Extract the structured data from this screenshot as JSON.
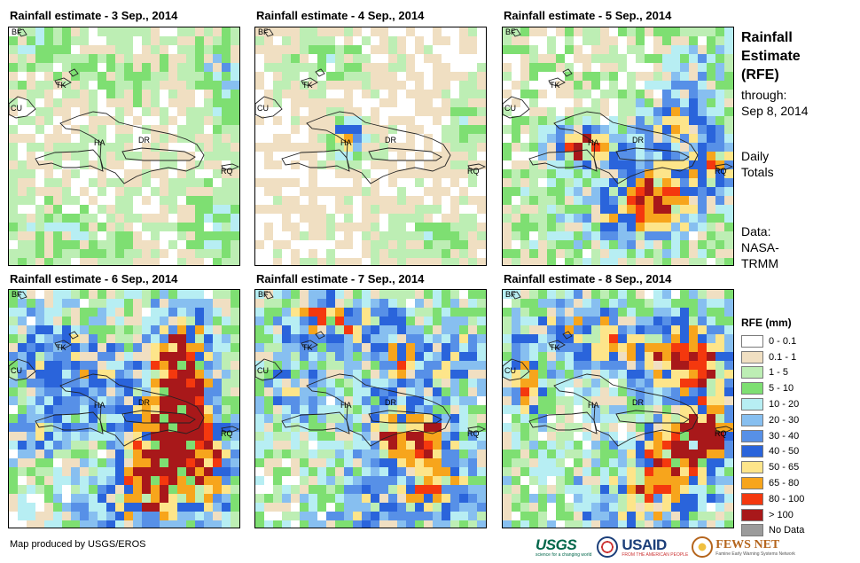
{
  "panels": [
    {
      "title": "Rainfall estimate - 3 Sep., 2014"
    },
    {
      "title": "Rainfall estimate - 4 Sep., 2014"
    },
    {
      "title": "Rainfall estimate - 5 Sep., 2014"
    },
    {
      "title": "Rainfall estimate - 6 Sep., 2014"
    },
    {
      "title": "Rainfall estimate - 7 Sep., 2014"
    },
    {
      "title": "Rainfall estimate - 8 Sep., 2014"
    }
  ],
  "map_labels": {
    "bf": "BF",
    "tk": "TK",
    "cu": "CU",
    "ha": "HA",
    "dr": "DR",
    "rq": "RQ"
  },
  "side": {
    "title_line1": "Rainfall",
    "title_line2": "Estimate",
    "title_line3": "(RFE)",
    "through_label": "through:",
    "through_date": "Sep 8, 2014",
    "daily_line1": "Daily",
    "daily_line2": "Totals",
    "data_line1": "Data:",
    "data_line2": "NASA-",
    "data_line3": "TRMM"
  },
  "legend": {
    "title": "RFE (mm)",
    "items": [
      {
        "label": "0 - 0.1",
        "color": "#ffffff"
      },
      {
        "label": "0.1 - 1",
        "color": "#f0dfc2"
      },
      {
        "label": "1 - 5",
        "color": "#bdeeb4"
      },
      {
        "label": "5 - 10",
        "color": "#7edf72"
      },
      {
        "label": "10 - 20",
        "color": "#b7eef3"
      },
      {
        "label": "20 - 30",
        "color": "#87bff0"
      },
      {
        "label": "30 - 40",
        "color": "#5790e7"
      },
      {
        "label": "40 - 50",
        "color": "#2a64db"
      },
      {
        "label": "50 - 65",
        "color": "#fde58a"
      },
      {
        "label": "65 - 80",
        "color": "#f7a51c"
      },
      {
        "label": "80 - 100",
        "color": "#f4380e"
      },
      {
        "label": "> 100",
        "color": "#a8181a"
      },
      {
        "label": "No Data",
        "color": "#9b9b9b"
      }
    ]
  },
  "footer": {
    "credit": "Map produced by USGS/EROS",
    "usgs": "USGS",
    "usgs_tagline": "science for a changing world",
    "usaid": "USAID",
    "usaid_tagline": "FROM THE AMERICAN PEOPLE",
    "fews": "FEWS NET",
    "fews_tagline": "Famine Early Warning Systems Network"
  }
}
